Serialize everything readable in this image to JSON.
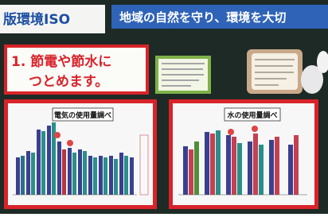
{
  "banner_left": "版環境ISO",
  "banner_right": "地域の自然を守り、環境を大切",
  "sign": {
    "lines": [
      "1. 節電や節水に",
      "つとめます。"
    ]
  },
  "posters": [
    {
      "title": "電気の使用量調べ"
    },
    {
      "title": "水の使用量調べ"
    }
  ]
}
